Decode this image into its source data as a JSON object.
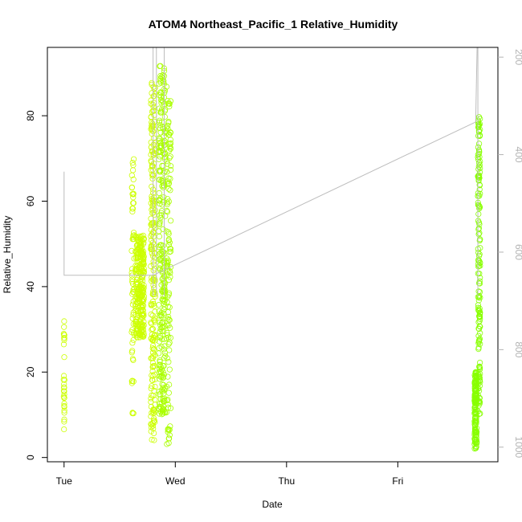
{
  "chart_data": {
    "type": "scatter",
    "title": "ATOM4 Northeast_Pacific_1 Relative_Humidity",
    "xlabel": "Date",
    "ylabel": "Relative_Humidity",
    "x_ticks": [
      "Tue",
      "Wed",
      "Thu",
      "Fri"
    ],
    "x_tick_days": [
      0,
      1,
      2,
      3
    ],
    "xlim_days": [
      -0.15,
      3.9
    ],
    "ylim": [
      -1,
      96
    ],
    "y_ticks": [
      0,
      20,
      40,
      60,
      80
    ],
    "y2_ticks": [
      200,
      400,
      600,
      800,
      1000
    ],
    "y2lim": [
      1030,
      180
    ],
    "grid": false,
    "point_colors": [
      "#ccff00",
      "#aaff00",
      "#88ff00"
    ],
    "line_color": "#bdbdbd",
    "axis2_color": "#b3b3b3",
    "series": [
      {
        "kind": "points",
        "clusters": [
          {
            "day": 0.0,
            "spread": 0.004,
            "n": 30,
            "ymin": 6,
            "ymax": 32
          },
          {
            "day": 0.62,
            "spread": 0.012,
            "n": 60,
            "ymin": 10,
            "ymax": 70
          },
          {
            "day": 0.68,
            "spread": 0.04,
            "n": 260,
            "ymin": 28,
            "ymax": 52
          },
          {
            "day": 0.8,
            "spread": 0.02,
            "n": 220,
            "ymin": 4,
            "ymax": 90
          },
          {
            "day": 0.88,
            "spread": 0.03,
            "n": 260,
            "ymin": 10,
            "ymax": 92
          },
          {
            "day": 0.94,
            "spread": 0.02,
            "n": 120,
            "ymin": 3,
            "ymax": 88
          },
          {
            "day": 3.7,
            "spread": 0.01,
            "n": 140,
            "ymin": 2,
            "ymax": 20
          },
          {
            "day": 3.73,
            "spread": 0.01,
            "n": 160,
            "ymin": 10,
            "ymax": 80
          }
        ]
      },
      {
        "kind": "pressure_line",
        "points": [
          [
            0,
            0.3
          ],
          [
            0,
            0.55
          ],
          [
            0.8,
            0.55
          ],
          [
            3.7,
            0.18
          ],
          [
            3.72,
            -0.1
          ]
        ]
      }
    ]
  }
}
